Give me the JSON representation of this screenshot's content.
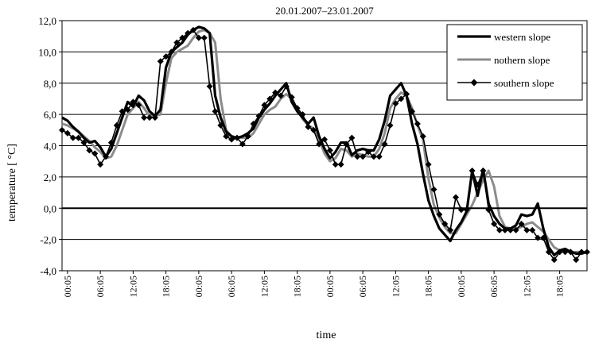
{
  "chart_data": {
    "type": "line",
    "title": "20.01.2007–23.01.2007",
    "xlabel": "time",
    "ylabel": "temperature  [ °C]",
    "ylim": [
      -4,
      12
    ],
    "y_ticks": [
      "12,0",
      "10,0",
      "8,0",
      "6,0",
      "4,0",
      "2,0",
      "0,0",
      "-2,0",
      "-4,0"
    ],
    "y_tick_values": [
      12,
      10,
      8,
      6,
      4,
      2,
      0,
      -2,
      -4
    ],
    "x_tick_labels": [
      "00:05",
      "06:05",
      "12:05",
      "18:05",
      "00:05",
      "06:05",
      "12:05",
      "18:05",
      "00:05",
      "06:05",
      "12:05",
      "18:05",
      "00:05",
      "06:05",
      "12:05",
      "18:05"
    ],
    "x_tick_hours": [
      0,
      6,
      12,
      18,
      24,
      30,
      36,
      42,
      48,
      54,
      60,
      66,
      72,
      78,
      84,
      90
    ],
    "x_range_hours": [
      -1,
      95
    ],
    "grid": "horizontal",
    "legend_position": "top-right",
    "series": [
      {
        "name": "western slope",
        "color": "#000000",
        "marker": "none",
        "points": [
          [
            -1,
            5.8
          ],
          [
            0,
            5.6
          ],
          [
            1,
            5.2
          ],
          [
            2,
            4.9
          ],
          [
            3,
            4.5
          ],
          [
            4,
            4.2
          ],
          [
            5,
            4.3
          ],
          [
            6,
            3.9
          ],
          [
            7,
            3.3
          ],
          [
            8,
            3.8
          ],
          [
            9,
            4.8
          ],
          [
            10,
            5.8
          ],
          [
            11,
            6.8
          ],
          [
            12,
            6.5
          ],
          [
            13,
            7.2
          ],
          [
            14,
            6.9
          ],
          [
            15,
            6.2
          ],
          [
            16,
            5.9
          ],
          [
            17,
            6.3
          ],
          [
            18,
            9.0
          ],
          [
            19,
            10.0
          ],
          [
            20,
            10.3
          ],
          [
            21,
            10.6
          ],
          [
            22,
            11.1
          ],
          [
            23,
            11.4
          ],
          [
            24,
            11.6
          ],
          [
            25,
            11.5
          ],
          [
            26,
            11.2
          ],
          [
            27,
            7.2
          ],
          [
            28,
            5.8
          ],
          [
            29,
            4.9
          ],
          [
            30,
            4.6
          ],
          [
            31,
            4.5
          ],
          [
            32,
            4.6
          ],
          [
            33,
            4.8
          ],
          [
            34,
            5.1
          ],
          [
            35,
            5.8
          ],
          [
            36,
            6.3
          ],
          [
            37,
            6.7
          ],
          [
            38,
            7.2
          ],
          [
            39,
            7.6
          ],
          [
            40,
            8.0
          ],
          [
            41,
            6.8
          ],
          [
            42,
            6.2
          ],
          [
            43,
            5.8
          ],
          [
            44,
            5.4
          ],
          [
            45,
            5.8
          ],
          [
            46,
            4.6
          ],
          [
            47,
            3.8
          ],
          [
            48,
            3.2
          ],
          [
            49,
            3.6
          ],
          [
            50,
            4.2
          ],
          [
            51,
            4.2
          ],
          [
            52,
            3.4
          ],
          [
            53,
            3.7
          ],
          [
            54,
            3.8
          ],
          [
            55,
            3.7
          ],
          [
            56,
            3.7
          ],
          [
            57,
            4.4
          ],
          [
            58,
            5.6
          ],
          [
            59,
            7.2
          ],
          [
            60,
            7.6
          ],
          [
            61,
            8.0
          ],
          [
            62,
            7.2
          ],
          [
            63,
            5.4
          ],
          [
            64,
            4.1
          ],
          [
            65,
            2.2
          ],
          [
            66,
            0.5
          ],
          [
            67,
            -0.5
          ],
          [
            68,
            -1.3
          ],
          [
            69,
            -1.7
          ],
          [
            70,
            -2.1
          ],
          [
            71,
            -1.4
          ],
          [
            72,
            -0.9
          ],
          [
            73,
            -0.2
          ],
          [
            74,
            2.4
          ],
          [
            75,
            0.8
          ],
          [
            76,
            2.5
          ],
          [
            77,
            0.3
          ],
          [
            78,
            -0.5
          ],
          [
            79,
            -1.0
          ],
          [
            80,
            -1.3
          ],
          [
            81,
            -1.3
          ],
          [
            82,
            -1.1
          ],
          [
            83,
            -0.4
          ],
          [
            84,
            -0.5
          ],
          [
            85,
            -0.4
          ],
          [
            86,
            0.3
          ],
          [
            87,
            -1.3
          ],
          [
            88,
            -2.5
          ],
          [
            89,
            -3.0
          ],
          [
            90,
            -2.7
          ],
          [
            91,
            -2.6
          ],
          [
            92,
            -2.8
          ],
          [
            93,
            -2.9
          ],
          [
            94,
            -2.9
          ],
          [
            95,
            -2.8
          ]
        ]
      },
      {
        "name": "nothern slope",
        "color": "#8c8c8c",
        "marker": "none",
        "points": [
          [
            -1,
            5.4
          ],
          [
            0,
            5.3
          ],
          [
            1,
            5.1
          ],
          [
            2,
            4.9
          ],
          [
            3,
            4.6
          ],
          [
            4,
            4.3
          ],
          [
            5,
            3.9
          ],
          [
            6,
            3.6
          ],
          [
            7,
            3.2
          ],
          [
            8,
            3.3
          ],
          [
            9,
            4.0
          ],
          [
            10,
            5.0
          ],
          [
            11,
            6.0
          ],
          [
            12,
            6.4
          ],
          [
            13,
            6.8
          ],
          [
            14,
            6.4
          ],
          [
            15,
            5.9
          ],
          [
            16,
            5.9
          ],
          [
            17,
            6.0
          ],
          [
            18,
            8.0
          ],
          [
            19,
            9.6
          ],
          [
            20,
            10.0
          ],
          [
            21,
            10.2
          ],
          [
            22,
            10.4
          ],
          [
            23,
            10.9
          ],
          [
            24,
            11.3
          ],
          [
            25,
            11.4
          ],
          [
            26,
            11.2
          ],
          [
            27,
            10.6
          ],
          [
            28,
            7.0
          ],
          [
            29,
            5.0
          ],
          [
            30,
            4.6
          ],
          [
            31,
            4.5
          ],
          [
            32,
            4.5
          ],
          [
            33,
            4.5
          ],
          [
            34,
            4.8
          ],
          [
            35,
            5.4
          ],
          [
            36,
            6.0
          ],
          [
            37,
            6.3
          ],
          [
            38,
            6.5
          ],
          [
            39,
            7.0
          ],
          [
            40,
            7.3
          ],
          [
            41,
            7.0
          ],
          [
            42,
            6.3
          ],
          [
            43,
            5.7
          ],
          [
            44,
            5.3
          ],
          [
            45,
            5.1
          ],
          [
            46,
            4.4
          ],
          [
            47,
            3.5
          ],
          [
            48,
            3.0
          ],
          [
            49,
            3.2
          ],
          [
            50,
            3.8
          ],
          [
            51,
            3.7
          ],
          [
            52,
            3.3
          ],
          [
            53,
            3.5
          ],
          [
            54,
            3.4
          ],
          [
            55,
            3.3
          ],
          [
            56,
            3.3
          ],
          [
            57,
            3.8
          ],
          [
            58,
            4.8
          ],
          [
            59,
            6.4
          ],
          [
            60,
            7.0
          ],
          [
            61,
            7.4
          ],
          [
            62,
            7.2
          ],
          [
            63,
            6.4
          ],
          [
            64,
            5.3
          ],
          [
            65,
            4.4
          ],
          [
            66,
            1.9
          ],
          [
            67,
            0.2
          ],
          [
            68,
            -0.6
          ],
          [
            69,
            -1.2
          ],
          [
            70,
            -1.6
          ],
          [
            71,
            -1.6
          ],
          [
            72,
            -1.0
          ],
          [
            73,
            -0.4
          ],
          [
            74,
            0.2
          ],
          [
            75,
            1.0
          ],
          [
            76,
            1.8
          ],
          [
            77,
            2.4
          ],
          [
            78,
            1.4
          ],
          [
            79,
            -0.5
          ],
          [
            80,
            -1.2
          ],
          [
            81,
            -1.3
          ],
          [
            82,
            -1.3
          ],
          [
            83,
            -1.2
          ],
          [
            84,
            -1.0
          ],
          [
            85,
            -0.9
          ],
          [
            86,
            -1.2
          ],
          [
            87,
            -1.5
          ],
          [
            88,
            -2.0
          ],
          [
            89,
            -2.5
          ],
          [
            90,
            -2.7
          ],
          [
            91,
            -2.7
          ],
          [
            92,
            -2.8
          ],
          [
            93,
            -2.8
          ],
          [
            94,
            -2.8
          ],
          [
            95,
            -2.8
          ]
        ]
      },
      {
        "name": "southern slope",
        "color": "#000000",
        "marker": "diamond",
        "points": [
          [
            -1,
            5.0
          ],
          [
            0,
            4.8
          ],
          [
            1,
            4.5
          ],
          [
            2,
            4.5
          ],
          [
            3,
            4.2
          ],
          [
            4,
            3.7
          ],
          [
            5,
            3.5
          ],
          [
            6,
            2.8
          ],
          [
            7,
            3.3
          ],
          [
            8,
            4.2
          ],
          [
            9,
            5.3
          ],
          [
            10,
            6.2
          ],
          [
            11,
            6.3
          ],
          [
            12,
            6.8
          ],
          [
            13,
            6.6
          ],
          [
            14,
            5.8
          ],
          [
            15,
            5.8
          ],
          [
            16,
            5.8
          ],
          [
            17,
            9.4
          ],
          [
            18,
            9.7
          ],
          [
            19,
            10.0
          ],
          [
            20,
            10.6
          ],
          [
            21,
            10.9
          ],
          [
            22,
            11.2
          ],
          [
            23,
            11.4
          ],
          [
            24,
            10.9
          ],
          [
            25,
            10.9
          ],
          [
            26,
            7.8
          ],
          [
            27,
            6.2
          ],
          [
            28,
            5.3
          ],
          [
            29,
            4.6
          ],
          [
            30,
            4.4
          ],
          [
            31,
            4.5
          ],
          [
            32,
            4.1
          ],
          [
            33,
            4.6
          ],
          [
            34,
            5.4
          ],
          [
            35,
            5.9
          ],
          [
            36,
            6.6
          ],
          [
            37,
            7.0
          ],
          [
            38,
            7.4
          ],
          [
            39,
            7.2
          ],
          [
            40,
            7.8
          ],
          [
            41,
            7.1
          ],
          [
            42,
            6.4
          ],
          [
            43,
            6.0
          ],
          [
            44,
            5.2
          ],
          [
            45,
            5.0
          ],
          [
            46,
            4.1
          ],
          [
            47,
            4.4
          ],
          [
            48,
            3.7
          ],
          [
            49,
            2.8
          ],
          [
            50,
            2.8
          ],
          [
            51,
            4.1
          ],
          [
            52,
            4.5
          ],
          [
            53,
            3.3
          ],
          [
            54,
            3.3
          ],
          [
            55,
            3.6
          ],
          [
            56,
            3.3
          ],
          [
            57,
            3.3
          ],
          [
            58,
            4.1
          ],
          [
            59,
            5.3
          ],
          [
            60,
            6.7
          ],
          [
            61,
            7.0
          ],
          [
            62,
            7.3
          ],
          [
            63,
            6.2
          ],
          [
            64,
            5.4
          ],
          [
            65,
            4.6
          ],
          [
            66,
            2.8
          ],
          [
            67,
            1.2
          ],
          [
            68,
            -0.4
          ],
          [
            69,
            -1.0
          ],
          [
            70,
            -1.4
          ],
          [
            71,
            0.7
          ],
          [
            72,
            -0.1
          ],
          [
            73,
            -0.1
          ],
          [
            74,
            2.4
          ],
          [
            75,
            1.5
          ],
          [
            76,
            2.4
          ],
          [
            77,
            -0.1
          ],
          [
            78,
            -1.0
          ],
          [
            79,
            -1.4
          ],
          [
            80,
            -1.4
          ],
          [
            81,
            -1.4
          ],
          [
            82,
            -1.4
          ],
          [
            83,
            -1.0
          ],
          [
            84,
            -1.4
          ],
          [
            85,
            -1.4
          ],
          [
            86,
            -1.9
          ],
          [
            87,
            -1.9
          ],
          [
            88,
            -2.8
          ],
          [
            89,
            -3.3
          ],
          [
            90,
            -2.8
          ],
          [
            91,
            -2.8
          ],
          [
            92,
            -2.8
          ],
          [
            93,
            -3.3
          ],
          [
            94,
            -2.8
          ],
          [
            95,
            -2.8
          ]
        ]
      }
    ]
  }
}
